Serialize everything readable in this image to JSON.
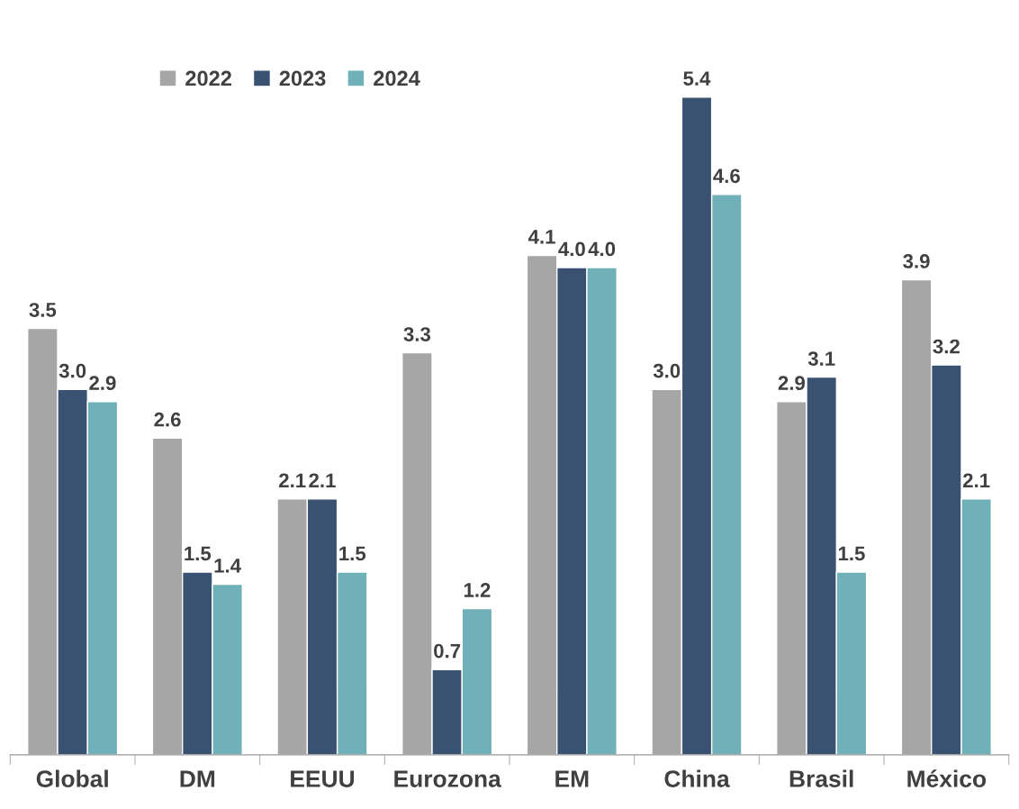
{
  "chart_data": {
    "type": "bar",
    "categories": [
      "Global",
      "DM",
      "EEUU",
      "Eurozona",
      "EM",
      "China",
      "Brasil",
      "México"
    ],
    "series": [
      {
        "name": "2022",
        "color": "#a6a6a6",
        "values": [
          3.5,
          2.6,
          2.1,
          3.3,
          4.1,
          3.0,
          2.9,
          3.9
        ],
        "value_labels": [
          "3.5",
          "2.6",
          "2.1",
          "3.3",
          "4.1",
          "3.0",
          "2.9",
          "3.9"
        ]
      },
      {
        "name": "2023",
        "color": "#3a5272",
        "values": [
          3.0,
          1.5,
          2.1,
          0.7,
          4.0,
          5.4,
          3.1,
          3.2
        ],
        "value_labels": [
          "3.0",
          "1.5",
          "2.1",
          "0.7",
          "4.0",
          "5.4",
          "3.1",
          "3.2"
        ]
      },
      {
        "name": "2024",
        "color": "#70b0b8",
        "values": [
          2.9,
          1.4,
          1.5,
          1.2,
          4.0,
          4.6,
          1.5,
          2.1
        ],
        "value_labels": [
          "2.9",
          "1.4",
          "1.5",
          "1.2",
          "4.0",
          "4.6",
          "1.5",
          "2.1"
        ]
      }
    ],
    "legend": "top",
    "grid": false,
    "tick_labels": "x"
  }
}
